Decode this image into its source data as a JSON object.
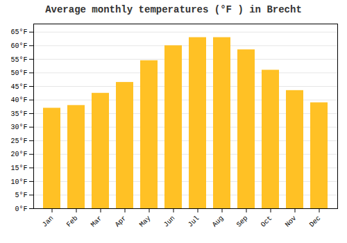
{
  "chart_data": {
    "type": "bar",
    "title": "Average monthly temperatures (°F ) in Brecht",
    "categories": [
      "Jan",
      "Feb",
      "Mar",
      "Apr",
      "May",
      "Jun",
      "Jul",
      "Aug",
      "Sep",
      "Oct",
      "Nov",
      "Dec"
    ],
    "values": [
      37,
      38,
      42.5,
      46.5,
      54.5,
      60,
      63,
      63,
      58.5,
      51,
      43.5,
      39
    ],
    "color": "#FFC125",
    "ylim": [
      0,
      68
    ],
    "yticks": [
      {
        "value": 0,
        "label": "0°F"
      },
      {
        "value": 5,
        "label": "5°F"
      },
      {
        "value": 10,
        "label": "10°F"
      },
      {
        "value": 15,
        "label": "15°F"
      },
      {
        "value": 20,
        "label": "20°F"
      },
      {
        "value": 25,
        "label": "25°F"
      },
      {
        "value": 30,
        "label": "30°F"
      },
      {
        "value": 35,
        "label": "35°F"
      },
      {
        "value": 40,
        "label": "40°F"
      },
      {
        "value": 45,
        "label": "45°F"
      },
      {
        "value": 50,
        "label": "50°F"
      },
      {
        "value": 55,
        "label": "55°F"
      },
      {
        "value": 60,
        "label": "60°F"
      },
      {
        "value": 65,
        "label": "65°F"
      }
    ],
    "grid": true
  }
}
